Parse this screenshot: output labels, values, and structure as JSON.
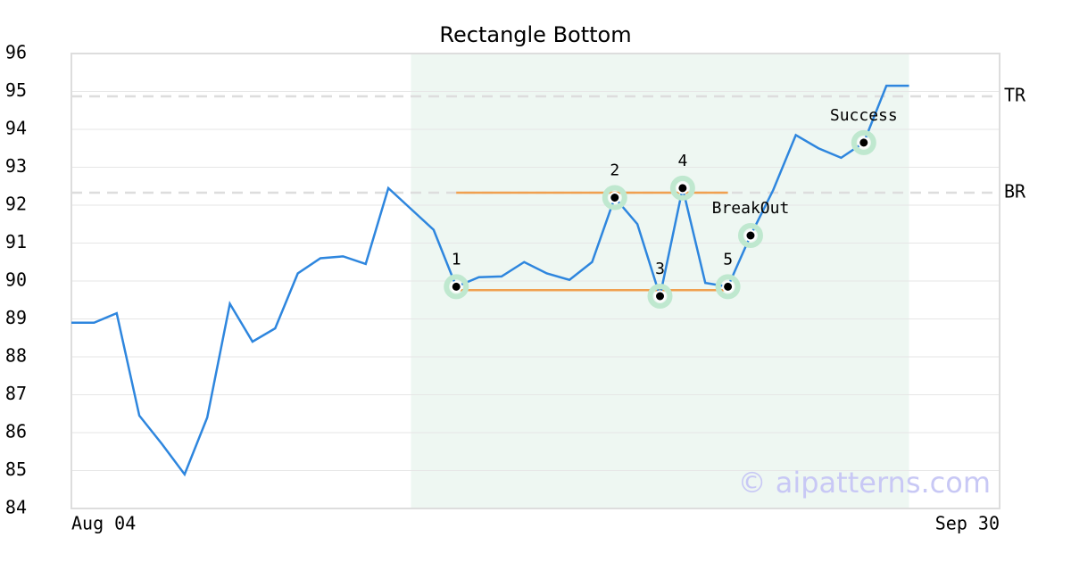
{
  "chart_data": {
    "type": "line",
    "title": "Rectangle Bottom",
    "x": [
      0,
      1,
      2,
      3,
      4,
      5,
      6,
      7,
      8,
      9,
      10,
      11,
      12,
      13,
      14,
      15,
      16,
      17,
      18,
      19,
      20,
      21,
      22,
      23,
      24,
      25,
      26,
      27,
      28,
      29,
      30,
      31,
      32,
      33,
      34,
      35,
      36,
      37
    ],
    "series": [
      {
        "color": "#2e86de",
        "values": [
          88.9,
          88.9,
          89.15,
          86.45,
          85.7,
          84.9,
          86.4,
          89.4,
          88.4,
          88.75,
          90.2,
          90.6,
          90.65,
          90.45,
          92.45,
          91.9,
          91.35,
          89.85,
          90.1,
          90.12,
          90.5,
          90.2,
          90.03,
          90.5,
          92.2,
          91.5,
          89.6,
          92.45,
          89.95,
          89.85,
          91.2,
          92.4,
          93.85,
          93.5,
          93.25,
          93.65,
          95.15,
          95.15
        ]
      }
    ],
    "xlim": [
      0,
      41
    ],
    "xticks": [
      {
        "value": 0,
        "label": "Aug 04"
      },
      {
        "value": 41,
        "label": "Sep 30"
      }
    ],
    "ylim": [
      84,
      96
    ],
    "yticks": [
      84,
      85,
      86,
      87,
      88,
      89,
      90,
      91,
      92,
      93,
      94,
      95,
      96
    ],
    "grid": true,
    "highlight": [
      15,
      37
    ],
    "levels": [
      {
        "label": "TR",
        "value": 94.87
      },
      {
        "label": "BR",
        "value": 92.33
      }
    ],
    "rectangle": {
      "color": "#f0a050",
      "x": [
        17,
        29
      ],
      "top": 92.33,
      "bottom": 89.76
    },
    "points": [
      {
        "label": "1",
        "x": 17,
        "y": 89.85
      },
      {
        "label": "2",
        "x": 24,
        "y": 92.2
      },
      {
        "label": "3",
        "x": 26,
        "y": 89.6
      },
      {
        "label": "4",
        "x": 27,
        "y": 92.45
      },
      {
        "label": "5",
        "x": 29,
        "y": 89.85
      },
      {
        "label": "BreakOut",
        "x": 30,
        "y": 91.2
      },
      {
        "label": "Success",
        "x": 35,
        "y": 93.65
      }
    ],
    "watermark": "© aipatterns.com"
  }
}
